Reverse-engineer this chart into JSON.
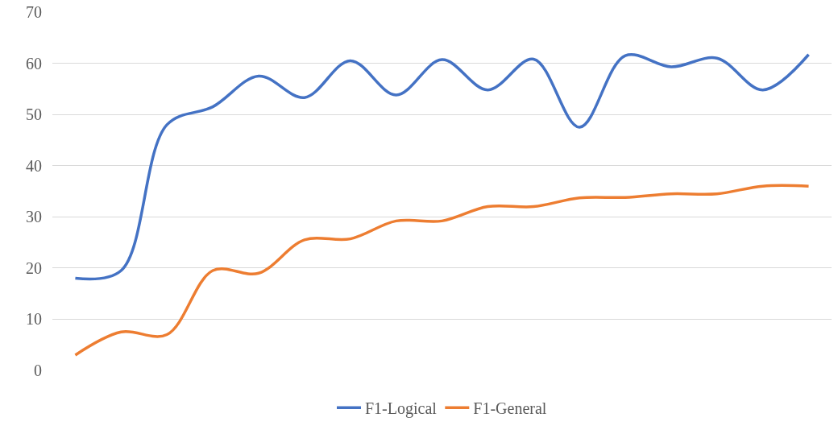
{
  "chart_data": {
    "type": "line",
    "categories": [
      null,
      null,
      null,
      null,
      null,
      null,
      null,
      null,
      null,
      null,
      null,
      null,
      null,
      null,
      null,
      null,
      null
    ],
    "series": [
      {
        "name": "F1-Logical",
        "color": "#4472c4",
        "values": [
          18,
          19.5,
          48,
          51.5,
          57.5,
          53.3,
          60.5,
          53.8,
          60.7,
          54.8,
          60.8,
          47.5,
          61.5,
          59.3,
          61,
          54.8,
          61.7
        ]
      },
      {
        "name": "F1-General",
        "color": "#ed7d31",
        "values": [
          3,
          7.5,
          7,
          19.5,
          19,
          25.5,
          25.7,
          29.2,
          29.2,
          32,
          32,
          33.7,
          33.8,
          34.5,
          34.5,
          36,
          36
        ]
      }
    ],
    "ylim": [
      0,
      70
    ],
    "yticks": [
      0,
      10,
      20,
      30,
      40,
      50,
      60,
      70
    ],
    "grid": "y",
    "legend": "bottom",
    "marker": "none",
    "line_style": "solid",
    "tick_labels": "y"
  }
}
